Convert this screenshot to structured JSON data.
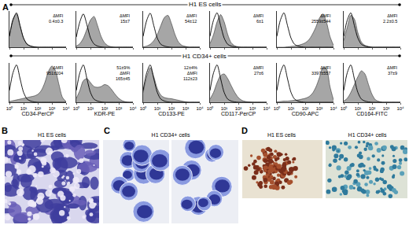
{
  "panel_A": {
    "label": "A",
    "row_titles": [
      "H1 ES cells",
      "H1 CD34+ cells"
    ]
  },
  "chart_data": [
    {
      "type": "area",
      "log": "x",
      "grid": false,
      "tick_labels": false,
      "annotations": [
        "ΔMFI",
        "0.4±0.3"
      ],
      "x": [
        1,
        1.78,
        3.16,
        5.62,
        10,
        17.8,
        31.6,
        56.2,
        100,
        178,
        316,
        562,
        1000,
        1780,
        3160,
        5620,
        10000
      ],
      "xlim": [
        1,
        10000
      ],
      "xticks": [
        1,
        10,
        100,
        1000,
        10000
      ],
      "ylim": [
        0,
        100
      ],
      "series": [
        {
          "type": "area",
          "color": "#a6a6a6",
          "line_style": "solid",
          "values": [
            32,
            78,
            92,
            58,
            24,
            9,
            3,
            1,
            0,
            0,
            0,
            0,
            0,
            0,
            0,
            0,
            0
          ]
        },
        {
          "type": "line",
          "color": "#000000",
          "line_style": "solid",
          "values": [
            30,
            75,
            95,
            60,
            25,
            8,
            3,
            1,
            0,
            0,
            0,
            0,
            0,
            0,
            0,
            0,
            0
          ]
        }
      ]
    },
    {
      "type": "area",
      "log": "x",
      "grid": false,
      "tick_labels": false,
      "annotations": [
        "ΔMFI",
        "15±7"
      ],
      "x": [
        1,
        1.78,
        3.16,
        5.62,
        10,
        17.8,
        31.6,
        56.2,
        100,
        178,
        316,
        562,
        1000,
        1780,
        3160,
        5620,
        10000
      ],
      "xlim": [
        1,
        10000
      ],
      "xticks": [
        1,
        10,
        100,
        1000,
        10000
      ],
      "ylim": [
        0,
        100
      ],
      "series": [
        {
          "type": "area",
          "color": "#a6a6a6",
          "line_style": "solid",
          "values": [
            3,
            10,
            25,
            50,
            75,
            85,
            60,
            30,
            12,
            4,
            1,
            0,
            0,
            0,
            0,
            0,
            0
          ]
        },
        {
          "type": "line",
          "color": "#000000",
          "line_style": "solid",
          "values": [
            28,
            70,
            92,
            62,
            26,
            9,
            3,
            1,
            0,
            0,
            0,
            0,
            0,
            0,
            0,
            0,
            0
          ]
        }
      ]
    },
    {
      "type": "area",
      "log": "x",
      "grid": false,
      "tick_labels": false,
      "annotations": [
        "ΔMFI",
        "54±12"
      ],
      "x": [
        1,
        1.78,
        3.16,
        5.62,
        10,
        17.8,
        31.6,
        56.2,
        100,
        178,
        316,
        562,
        1000,
        1780,
        3160,
        5620,
        10000
      ],
      "xlim": [
        1,
        10000
      ],
      "xticks": [
        1,
        10,
        100,
        1000,
        10000
      ],
      "ylim": [
        0,
        100
      ],
      "series": [
        {
          "type": "area",
          "color": "#a6a6a6",
          "line_style": "solid",
          "values": [
            1,
            3,
            8,
            18,
            35,
            60,
            82,
            88,
            65,
            35,
            14,
            5,
            2,
            0,
            0,
            0,
            0
          ]
        },
        {
          "type": "line",
          "color": "#000000",
          "line_style": "solid",
          "values": [
            30,
            74,
            94,
            60,
            25,
            8,
            3,
            1,
            0,
            0,
            0,
            0,
            0,
            0,
            0,
            0,
            0
          ]
        }
      ]
    },
    {
      "type": "area",
      "log": "x",
      "grid": false,
      "tick_labels": false,
      "annotations": [
        "ΔMFI",
        "6±1"
      ],
      "x": [
        1,
        1.78,
        3.16,
        5.62,
        10,
        17.8,
        31.6,
        56.2,
        100,
        178,
        316,
        562,
        1000,
        1780,
        3160,
        5620,
        10000
      ],
      "xlim": [
        1,
        10000
      ],
      "xticks": [
        1,
        10,
        100,
        1000,
        10000
      ],
      "ylim": [
        0,
        100
      ],
      "series": [
        {
          "type": "area",
          "color": "#a6a6a6",
          "line_style": "solid",
          "values": [
            10,
            35,
            70,
            90,
            70,
            35,
            12,
            4,
            1,
            0,
            0,
            0,
            0,
            0,
            0,
            0,
            0
          ]
        },
        {
          "type": "line",
          "color": "#000000",
          "line_style": "solid",
          "values": [
            30,
            75,
            95,
            60,
            25,
            8,
            3,
            1,
            0,
            0,
            0,
            0,
            0,
            0,
            0,
            0,
            0
          ]
        }
      ]
    },
    {
      "type": "area",
      "log": "x",
      "grid": false,
      "tick_labels": false,
      "annotations": [
        "ΔMFI",
        "2559±544"
      ],
      "x": [
        1,
        1.78,
        3.16,
        5.62,
        10,
        17.8,
        31.6,
        56.2,
        100,
        178,
        316,
        562,
        1000,
        1780,
        3160,
        5620,
        10000
      ],
      "xlim": [
        1,
        10000
      ],
      "xticks": [
        1,
        10,
        100,
        1000,
        10000
      ],
      "ylim": [
        0,
        100
      ],
      "series": [
        {
          "type": "area",
          "color": "#a6a6a6",
          "line_style": "solid",
          "values": [
            0,
            0,
            0,
            1,
            2,
            3,
            5,
            8,
            12,
            20,
            35,
            55,
            80,
            92,
            70,
            30,
            5
          ]
        },
        {
          "type": "line",
          "color": "#000000",
          "line_style": "solid",
          "values": [
            30,
            75,
            95,
            60,
            25,
            8,
            3,
            1,
            0,
            0,
            0,
            0,
            0,
            0,
            0,
            0,
            0
          ]
        }
      ]
    },
    {
      "type": "area",
      "log": "x",
      "grid": false,
      "tick_labels": false,
      "annotations": [
        "ΔMFI",
        "2.2±0.5"
      ],
      "x": [
        1,
        1.78,
        3.16,
        5.62,
        10,
        17.8,
        31.6,
        56.2,
        100,
        178,
        316,
        562,
        1000,
        1780,
        3160,
        5620,
        10000
      ],
      "xlim": [
        1,
        10000
      ],
      "xticks": [
        1,
        10,
        100,
        1000,
        10000
      ],
      "ylim": [
        0,
        100
      ],
      "series": [
        {
          "type": "area",
          "color": "#a6a6a6",
          "line_style": "solid",
          "values": [
            18,
            55,
            88,
            78,
            40,
            14,
            5,
            2,
            0,
            0,
            0,
            0,
            0,
            0,
            0,
            0,
            0
          ]
        },
        {
          "type": "line",
          "color": "#000000",
          "line_style": "solid",
          "values": [
            30,
            75,
            95,
            60,
            25,
            8,
            3,
            1,
            0,
            0,
            0,
            0,
            0,
            0,
            0,
            0,
            0
          ]
        }
      ]
    },
    {
      "type": "area",
      "log": "x",
      "grid": false,
      "tick_labels": "x",
      "x_label": "CD34-PerCP",
      "annotations": [
        "ΔMFI",
        "951±204"
      ],
      "x": [
        1,
        1.78,
        3.16,
        5.62,
        10,
        17.8,
        31.6,
        56.2,
        100,
        178,
        316,
        562,
        1000,
        1780,
        3160,
        5620,
        10000
      ],
      "xlim": [
        1,
        10000
      ],
      "ylim": [
        0,
        100
      ],
      "xticks": [
        {
          "value": 1,
          "label": "10⁰"
        },
        {
          "value": 10,
          "label": "10¹"
        },
        {
          "value": 100,
          "label": "10²"
        },
        {
          "value": 1000,
          "label": "10³"
        },
        {
          "value": 10000,
          "label": "10⁴"
        }
      ],
      "series": [
        {
          "type": "area",
          "color": "#a6a6a6",
          "line_style": "solid",
          "values": [
            2,
            4,
            6,
            8,
            10,
            12,
            14,
            16,
            20,
            30,
            50,
            78,
            92,
            80,
            45,
            12,
            2
          ]
        },
        {
          "type": "line",
          "color": "#000000",
          "line_style": "solid",
          "values": [
            30,
            75,
            95,
            60,
            25,
            8,
            3,
            1,
            0,
            0,
            0,
            0,
            0,
            0,
            0,
            0,
            0
          ]
        }
      ]
    },
    {
      "type": "area",
      "log": "x",
      "grid": false,
      "tick_labels": "x",
      "x_label": "KDR-PE",
      "annotations": [
        "51±9%",
        "ΔMFI",
        "165±45"
      ],
      "x": [
        1,
        1.78,
        3.16,
        5.62,
        10,
        17.8,
        31.6,
        56.2,
        100,
        178,
        316,
        562,
        1000,
        1780,
        3160,
        5620,
        10000
      ],
      "xlim": [
        1,
        10000
      ],
      "ylim": [
        0,
        100
      ],
      "xticks": [
        {
          "value": 1,
          "label": "10⁰"
        },
        {
          "value": 10,
          "label": "10¹"
        },
        {
          "value": 100,
          "label": "10²"
        },
        {
          "value": 1000,
          "label": "10³"
        },
        {
          "value": 10000,
          "label": "10⁴"
        }
      ],
      "series": [
        {
          "type": "area",
          "color": "#a6a6a6",
          "line_style": "solid",
          "values": [
            10,
            30,
            55,
            60,
            50,
            40,
            38,
            40,
            45,
            42,
            32,
            20,
            10,
            4,
            1,
            0,
            0
          ]
        },
        {
          "type": "line",
          "color": "#000000",
          "line_style": "solid",
          "values": [
            30,
            75,
            95,
            60,
            25,
            8,
            3,
            1,
            0,
            0,
            0,
            0,
            0,
            0,
            0,
            0,
            0
          ]
        }
      ]
    },
    {
      "type": "area",
      "log": "x",
      "grid": false,
      "tick_labels": "x",
      "x_label": "CD133-PE",
      "annotations": [
        "12±4%",
        "ΔMFI",
        "112±23"
      ],
      "x": [
        1,
        1.78,
        3.16,
        5.62,
        10,
        17.8,
        31.6,
        56.2,
        100,
        178,
        316,
        562,
        1000,
        1780,
        3160,
        5620,
        10000
      ],
      "xlim": [
        1,
        10000
      ],
      "ylim": [
        0,
        100
      ],
      "xticks": [
        {
          "value": 1,
          "label": "10⁰"
        },
        {
          "value": 10,
          "label": "10¹"
        },
        {
          "value": 100,
          "label": "10²"
        },
        {
          "value": 1000,
          "label": "10³"
        },
        {
          "value": 10000,
          "label": "10⁴"
        }
      ],
      "series": [
        {
          "type": "area",
          "color": "#a6a6a6",
          "line_style": "solid",
          "values": [
            25,
            65,
            88,
            65,
            35,
            18,
            12,
            10,
            9,
            7,
            5,
            3,
            1,
            0,
            0,
            0,
            0
          ]
        },
        {
          "type": "line",
          "color": "#000000",
          "line_style": "solid",
          "values": [
            30,
            75,
            95,
            60,
            25,
            8,
            3,
            1,
            0,
            0,
            0,
            0,
            0,
            0,
            0,
            0,
            0
          ]
        }
      ]
    },
    {
      "type": "area",
      "log": "x",
      "grid": false,
      "tick_labels": "x",
      "x_label": "CD117-PerCP",
      "annotations": [
        "ΔMFI",
        "27±6"
      ],
      "x": [
        1,
        1.78,
        3.16,
        5.62,
        10,
        17.8,
        31.6,
        56.2,
        100,
        178,
        316,
        562,
        1000,
        1780,
        3160,
        5620,
        10000
      ],
      "xlim": [
        1,
        10000
      ],
      "ylim": [
        0,
        100
      ],
      "xticks": [
        {
          "value": 1,
          "label": "10⁰"
        },
        {
          "value": 10,
          "label": "10¹"
        },
        {
          "value": 100,
          "label": "10²"
        },
        {
          "value": 1000,
          "label": "10³"
        },
        {
          "value": 10000,
          "label": "10⁴"
        }
      ],
      "series": [
        {
          "type": "area",
          "color": "#a6a6a6",
          "line_style": "solid",
          "values": [
            8,
            25,
            50,
            68,
            72,
            60,
            42,
            25,
            12,
            5,
            2,
            1,
            0,
            0,
            0,
            0,
            0
          ]
        },
        {
          "type": "line",
          "color": "#000000",
          "line_style": "solid",
          "values": [
            30,
            75,
            95,
            60,
            25,
            8,
            3,
            1,
            0,
            0,
            0,
            0,
            0,
            0,
            0,
            0,
            0
          ]
        }
      ]
    },
    {
      "type": "area",
      "log": "x",
      "grid": false,
      "tick_labels": "x",
      "x_label": "CD90-APC",
      "annotations": [
        "ΔMFI",
        "3397±557"
      ],
      "x": [
        1,
        1.78,
        3.16,
        5.62,
        10,
        17.8,
        31.6,
        56.2,
        100,
        178,
        316,
        562,
        1000,
        1780,
        3160,
        5620,
        10000
      ],
      "xlim": [
        1,
        10000
      ],
      "ylim": [
        0,
        100
      ],
      "xticks": [
        {
          "value": 1,
          "label": "10⁰"
        },
        {
          "value": 10,
          "label": "10¹"
        },
        {
          "value": 100,
          "label": "10²"
        },
        {
          "value": 1000,
          "label": "10³"
        },
        {
          "value": 10000,
          "label": "10⁴"
        }
      ],
      "series": [
        {
          "type": "area",
          "color": "#a6a6a6",
          "line_style": "solid",
          "values": [
            1,
            2,
            3,
            3,
            4,
            5,
            6,
            8,
            10,
            14,
            22,
            38,
            62,
            88,
            85,
            40,
            6
          ]
        },
        {
          "type": "line",
          "color": "#000000",
          "line_style": "solid",
          "values": [
            30,
            75,
            95,
            60,
            25,
            8,
            3,
            1,
            0,
            0,
            0,
            0,
            0,
            0,
            0,
            0,
            0
          ]
        }
      ]
    },
    {
      "type": "area",
      "log": "x",
      "grid": false,
      "tick_labels": "x",
      "x_label": "CD164-FITC",
      "annotations": [
        "ΔMFI",
        "37±9"
      ],
      "x": [
        1,
        1.78,
        3.16,
        5.62,
        10,
        17.8,
        31.6,
        56.2,
        100,
        178,
        316,
        562,
        1000,
        1780,
        3160,
        5620,
        10000
      ],
      "xlim": [
        1,
        10000
      ],
      "ylim": [
        0,
        100
      ],
      "xticks": [
        {
          "value": 1,
          "label": "10⁰"
        },
        {
          "value": 10,
          "label": "10¹"
        },
        {
          "value": 100,
          "label": "10²"
        },
        {
          "value": 1000,
          "label": "10³"
        },
        {
          "value": 10000,
          "label": "10⁴"
        }
      ],
      "series": [
        {
          "type": "area",
          "color": "#a6a6a6",
          "line_style": "solid",
          "values": [
            3,
            10,
            25,
            45,
            65,
            80,
            72,
            45,
            20,
            6,
            2,
            0,
            0,
            0,
            0,
            0,
            0
          ]
        },
        {
          "type": "line",
          "color": "#000000",
          "line_style": "solid",
          "values": [
            30,
            75,
            95,
            60,
            25,
            8,
            3,
            1,
            0,
            0,
            0,
            0,
            0,
            0,
            0,
            0,
            0
          ]
        }
      ]
    }
  ],
  "panel_B": {
    "label": "B",
    "captions": [
      "H1 ES cells"
    ]
  },
  "panel_C": {
    "label": "C",
    "captions": [
      "H1 CD34+ cells"
    ]
  },
  "panel_D": {
    "label": "D",
    "captions": [
      "H1 ES cells",
      "H1 CD34+ cells"
    ]
  }
}
